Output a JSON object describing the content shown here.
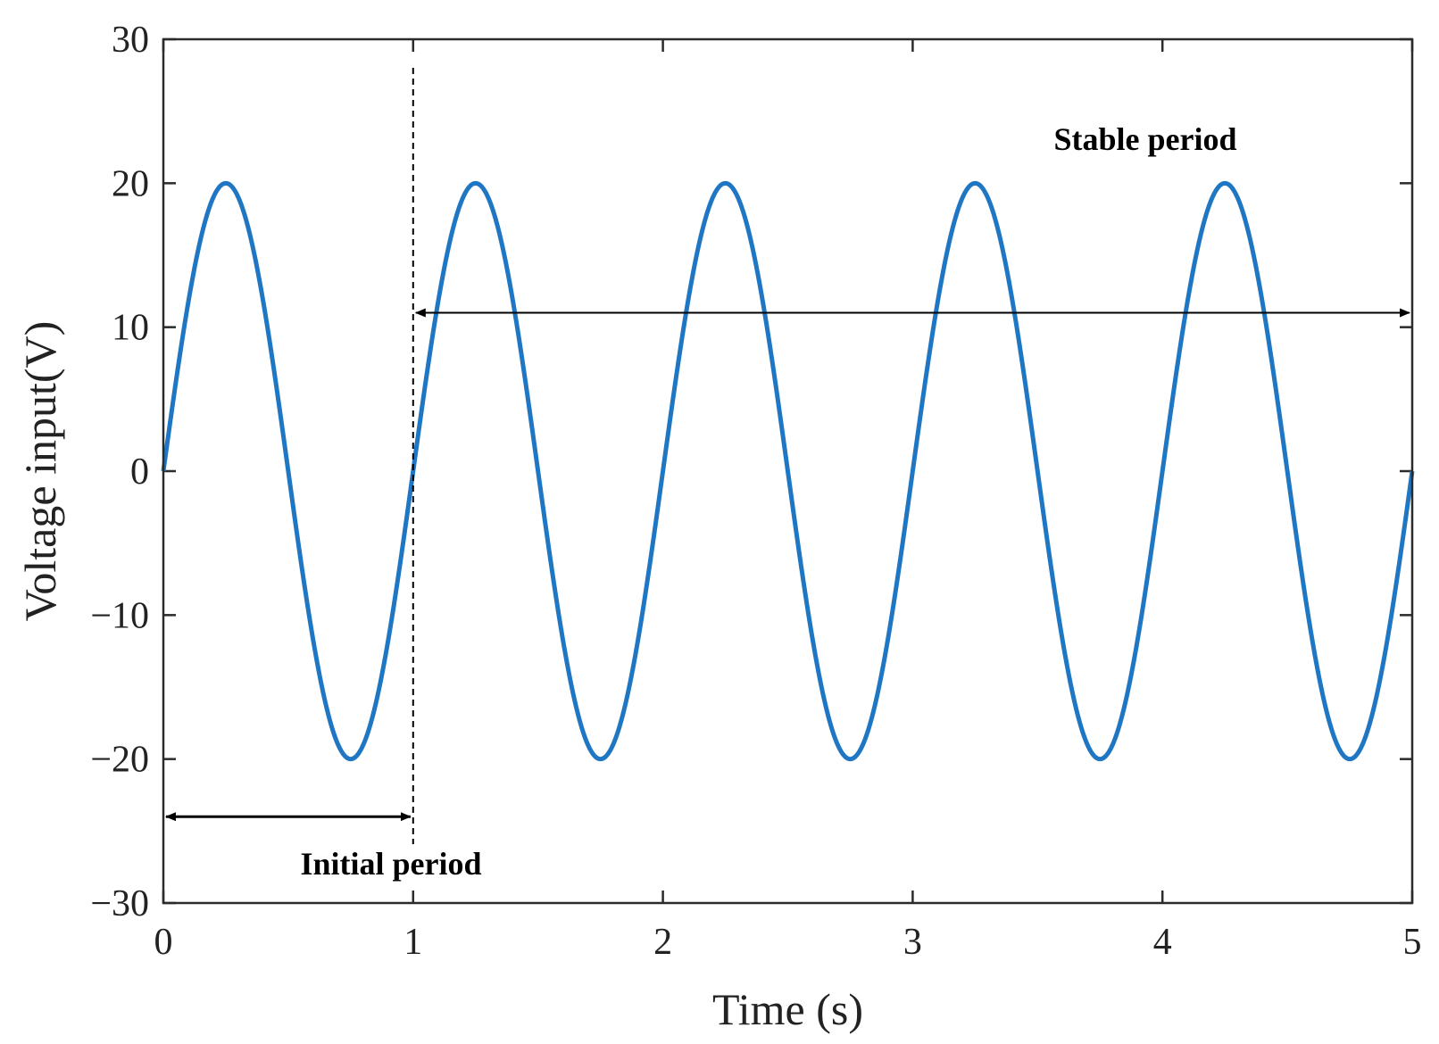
{
  "chart_data": {
    "type": "line",
    "title": "",
    "xlabel": "Time (s)",
    "ylabel": "Voltage input(V)",
    "xlim": [
      0,
      5
    ],
    "ylim": [
      -30,
      30
    ],
    "xticks": [
      0,
      1,
      2,
      3,
      4,
      5
    ],
    "xtick_labels": [
      "0",
      "1",
      "2",
      "3",
      "4",
      "5"
    ],
    "yticks": [
      -30,
      -20,
      -10,
      0,
      10,
      20,
      30
    ],
    "ytick_labels": [
      "−30",
      "−20",
      "−10",
      "0",
      "10",
      "20",
      "30"
    ],
    "grid": false,
    "legend": "none",
    "series": [
      {
        "color": "#1f77c4",
        "function": "20*sin(2*pi*t)",
        "amplitude": 20,
        "frequency_hz": 1,
        "x": [
          0,
          0.25,
          0.5,
          0.75,
          1,
          1.25,
          1.5,
          1.75,
          2,
          2.25,
          2.5,
          2.75,
          3,
          3.25,
          3.5,
          3.75,
          4,
          4.25,
          4.5,
          4.75,
          5
        ],
        "y": [
          0,
          20,
          0,
          -20,
          0,
          20,
          0,
          -20,
          0,
          20,
          0,
          -20,
          0,
          20,
          0,
          -20,
          0,
          20,
          0,
          -20,
          0
        ]
      }
    ],
    "annotations": {
      "divider_x": 1,
      "initial": {
        "label": "Initial period",
        "from": 0,
        "to": 1,
        "y": -24
      },
      "stable": {
        "label": "Stable period",
        "from": 1,
        "to": 5,
        "y": 11
      }
    }
  }
}
